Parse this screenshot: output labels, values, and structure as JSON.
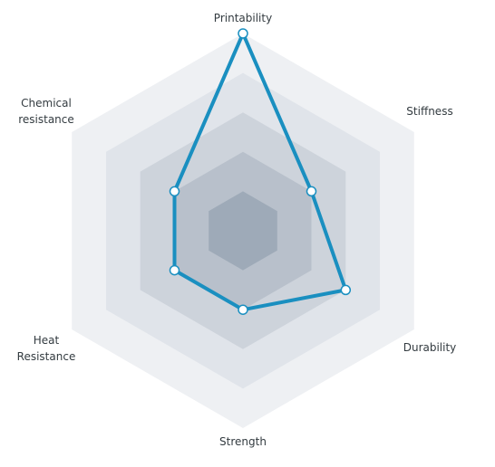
{
  "chart_data": {
    "type": "radar",
    "axes": [
      "Printability",
      "Stiffness",
      "Durability",
      "Strength",
      "Heat Resistance",
      "Chemical resistance"
    ],
    "axis_labels": [
      {
        "lines": [
          "Printability"
        ]
      },
      {
        "lines": [
          "Stiffness"
        ]
      },
      {
        "lines": [
          "Durability"
        ]
      },
      {
        "lines": [
          "Strength"
        ]
      },
      {
        "lines": [
          "Heat",
          "Resistance"
        ]
      },
      {
        "lines": [
          "Chemical",
          "resistance"
        ]
      }
    ],
    "max": 5,
    "levels": 5,
    "series": [
      {
        "values": [
          5,
          2,
          3,
          2,
          2,
          2
        ]
      }
    ],
    "grid": true,
    "colors": {
      "line": "#1a8fc0",
      "point_fill": "#ffffff",
      "rings": [
        "#eef0f3",
        "#e0e4ea",
        "#cdd3db",
        "#b8c0cb",
        "#9eaab8"
      ]
    }
  }
}
